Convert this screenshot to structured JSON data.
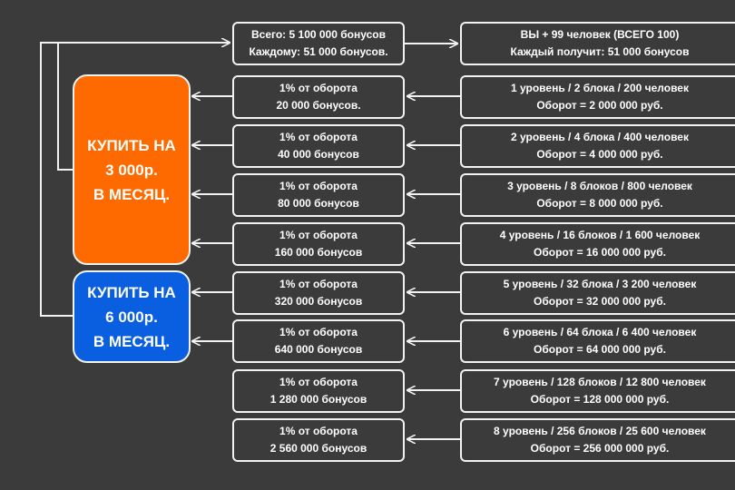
{
  "top": {
    "mid": [
      "Всего: 5 100 000 бонусов",
      "Каждому: 51 000 бонусов."
    ],
    "right": [
      "ВЫ + 99 человек (ВСЕГО 100)",
      "Каждый получит: 51 000 бонусов"
    ]
  },
  "rows": [
    {
      "mid": [
        "1% от оборота",
        "20 000 бонусов."
      ],
      "right": [
        "1 уровень / 2 блока / 200 человек",
        "Оборот = 2 000 000 руб."
      ]
    },
    {
      "mid": [
        "1% от оборота",
        "40 000 бонусов"
      ],
      "right": [
        "2 уровень / 4 блока / 400 человек",
        "Оборот = 4 000 000 руб."
      ]
    },
    {
      "mid": [
        "1% от оборота",
        "80 000 бонусов"
      ],
      "right": [
        "3 уровень / 8 блоков / 800 человек",
        "Оборот = 8 000 000 руб."
      ]
    },
    {
      "mid": [
        "1% от оборота",
        "160 000 бонусов"
      ],
      "right": [
        "4 уровень / 16 блоков / 1 600 человек",
        "Оборот = 16 000 000 руб."
      ]
    },
    {
      "mid": [
        "1% от оборота",
        "320 000 бонусов"
      ],
      "right": [
        "5 уровень / 32 блока / 3 200 человек",
        "Оборот = 32 000 000 руб."
      ]
    },
    {
      "mid": [
        "1% от оборота",
        "640 000 бонусов"
      ],
      "right": [
        "6 уровень / 64 блока / 6 400 человек",
        "Оборот = 64 000 000 руб."
      ]
    },
    {
      "mid": [
        "1% от оборота",
        "1 280 000 бонусов"
      ],
      "right": [
        "7 уровень / 128 блоков / 12 800 человек",
        "Оборот = 128 000 000 руб."
      ]
    },
    {
      "mid": [
        "1% от оборота",
        "2 560 000 бонусов"
      ],
      "right": [
        "8 уровень / 256 блоков / 25 600 человек",
        "Оборот = 256 000 000 руб."
      ]
    }
  ],
  "buy_orange": {
    "lines": [
      "КУПИТЬ НА",
      "3 000р.",
      "В МЕСЯЦ."
    ],
    "color": "#ff6a00"
  },
  "buy_blue": {
    "lines": [
      "КУПИТЬ НА",
      "6 000р.",
      "В МЕСЯЦ."
    ],
    "color": "#0a5fe0"
  }
}
